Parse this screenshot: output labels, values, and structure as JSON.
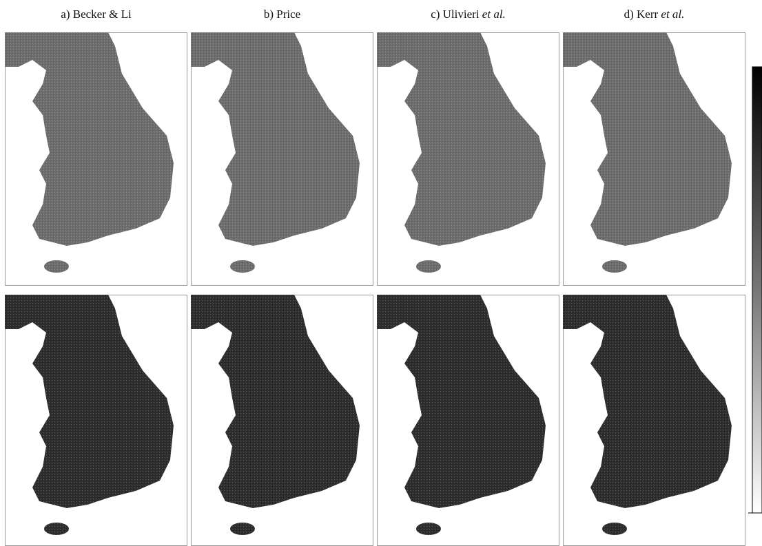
{
  "header": {
    "panels": [
      {
        "label": "a) Becker & Li"
      },
      {
        "label": "b) Price"
      },
      {
        "label": "c) Ulivieri",
        "label_italic": "et al."
      },
      {
        "label": "d) Kerr",
        "label_italic": "et al."
      }
    ]
  }
}
